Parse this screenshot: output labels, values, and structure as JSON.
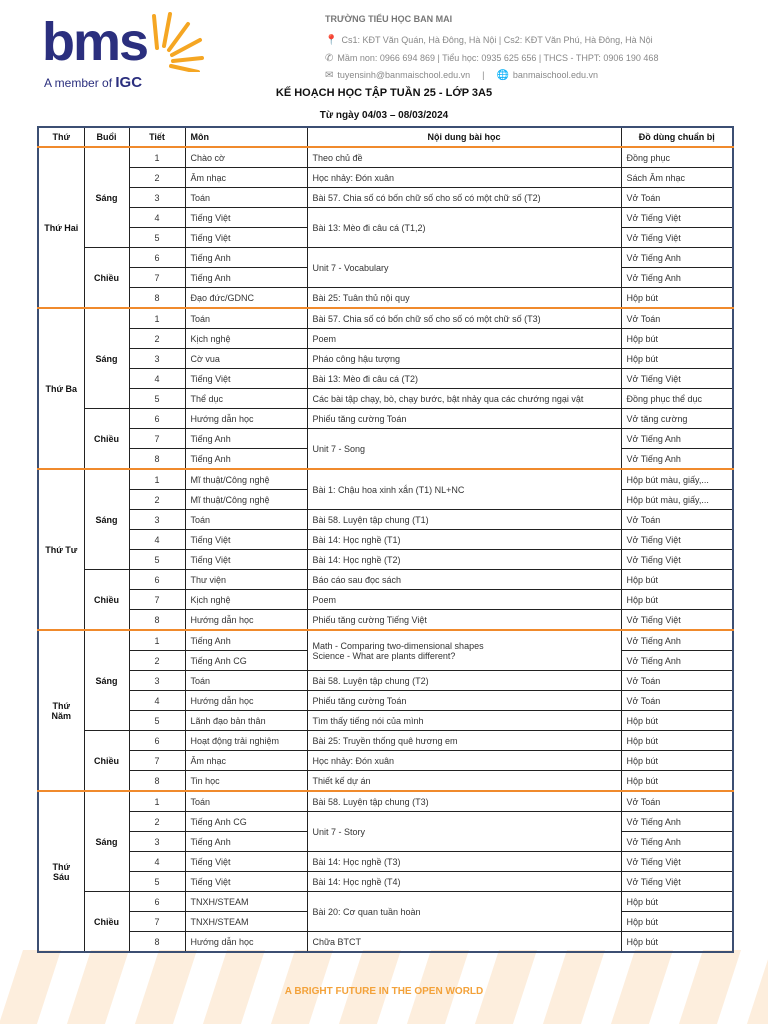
{
  "header": {
    "logo_text": "bms",
    "logo_member": "A member of",
    "logo_member_brand": "IGC",
    "school_name": "TRƯỜNG TIỂU HỌC BAN MAI",
    "address": "Cs1: KĐT Văn Quán, Hà Đông, Hà Nội   |   Cs2: KĐT Văn Phú, Hà Đông, Hà Nội",
    "phones": "Mầm non: 0966 694 869  |  Tiểu học: 0935 625 656  |  THCS - THPT: 0906 190 468",
    "email": "tuyensinh@banmaischool.edu.vn",
    "website": "banmaischool.edu.vn",
    "title": "KẾ HOẠCH HỌC TẬP TUẦN 25 - LỚP 3A5",
    "date_range": "Từ ngày 04/03  –  08/03/2024",
    "accent_color": "#f08a2c",
    "brand_color": "#2b2f7e"
  },
  "table": {
    "columns": [
      "Thứ",
      "Buổi",
      "Tiết",
      "Môn",
      "Nội dung bài học",
      "Đồ dùng chuẩn bị"
    ],
    "days": [
      {
        "name": "Thứ Hai",
        "sessions": [
          {
            "name": "Sáng",
            "rows": [
              {
                "tiet": "1",
                "mon": "Chào cờ",
                "noidung": "Theo chủ đề",
                "span": 1,
                "dodung": "Đồng phục"
              },
              {
                "tiet": "2",
                "mon": "Âm nhạc",
                "noidung": "Học nhảy: Đón xuân",
                "span": 1,
                "dodung": "Sách Âm nhạc"
              },
              {
                "tiet": "3",
                "mon": "Toán",
                "noidung": "Bài 57. Chia số có bốn chữ số cho số có một chữ số (T2)",
                "span": 1,
                "dodung": "Vở Toán"
              },
              {
                "tiet": "4",
                "mon": "Tiếng Việt",
                "noidung": "Bài 13: Mèo đi câu cá (T1,2)",
                "span": 2,
                "dodung": "Vở Tiếng Việt"
              },
              {
                "tiet": "5",
                "mon": "Tiếng Việt",
                "dodung": "Vở Tiếng Việt"
              }
            ]
          },
          {
            "name": "Chiều",
            "rows": [
              {
                "tiet": "6",
                "mon": "Tiếng Anh",
                "noidung": "Unit 7 - Vocabulary",
                "span": 2,
                "dodung": "Vở Tiếng Anh"
              },
              {
                "tiet": "7",
                "mon": "Tiếng Anh",
                "dodung": "Vở Tiếng Anh"
              },
              {
                "tiet": "8",
                "mon": "Đạo đức/GDNC",
                "noidung": "Bài 25: Tuân thủ nội quy",
                "span": 1,
                "dodung": "Hộp bút"
              }
            ]
          }
        ]
      },
      {
        "name": "Thứ Ba",
        "sessions": [
          {
            "name": "Sáng",
            "rows": [
              {
                "tiet": "1",
                "mon": "Toán",
                "noidung": "Bài 57. Chia số có bốn chữ số cho số có một chữ số (T3)",
                "span": 1,
                "dodung": "Vở Toán"
              },
              {
                "tiet": "2",
                "mon": "Kịch nghệ",
                "noidung": "Poem",
                "span": 1,
                "dodung": "Hộp bút"
              },
              {
                "tiet": "3",
                "mon": "Cờ vua",
                "noidung": "Pháo công hậu tượng",
                "span": 1,
                "dodung": "Hộp bút"
              },
              {
                "tiet": "4",
                "mon": "Tiếng Việt",
                "noidung": "Bài 13: Mèo đi câu cá (T2)",
                "span": 1,
                "dodung": "Vở Tiếng Việt"
              },
              {
                "tiet": "5",
                "mon": "Thể dục",
                "noidung": "Các bài tập chạy, bò, chạy bước, bật nhảy qua các chướng ngại vật",
                "span": 1,
                "dodung": "Đồng phục thể dục"
              }
            ]
          },
          {
            "name": "Chiều",
            "rows": [
              {
                "tiet": "6",
                "mon": "Hướng dẫn học",
                "noidung": "Phiếu tăng cường Toán",
                "span": 1,
                "dodung": "Vở tăng cường"
              },
              {
                "tiet": "7",
                "mon": "Tiếng Anh",
                "noidung": "Unit 7 - Song",
                "span": 2,
                "dodung": "Vở Tiếng Anh"
              },
              {
                "tiet": "8",
                "mon": "Tiếng Anh",
                "dodung": "Vở Tiếng Anh"
              }
            ]
          }
        ]
      },
      {
        "name": "Thứ Tư",
        "sessions": [
          {
            "name": "Sáng",
            "rows": [
              {
                "tiet": "1",
                "mon": "Mĩ thuật/Công nghệ",
                "noidung": "Bài 1: Chậu hoa xinh xắn (T1) NL+NC",
                "span": 2,
                "dodung": "Hộp bút màu, giấy,..."
              },
              {
                "tiet": "2",
                "mon": "Mĩ thuật/Công nghệ",
                "dodung": "Hộp bút màu, giấy,..."
              },
              {
                "tiet": "3",
                "mon": "Toán",
                "noidung": "Bài 58. Luyện tập chung (T1)",
                "span": 1,
                "dodung": "Vở Toán"
              },
              {
                "tiet": "4",
                "mon": "Tiếng Việt",
                "noidung": "Bài 14: Học nghề (T1)",
                "span": 1,
                "dodung": "Vở Tiếng Việt"
              },
              {
                "tiet": "5",
                "mon": "Tiếng Việt",
                "noidung": "Bài 14: Học nghề (T2)",
                "span": 1,
                "dodung": "Vở Tiếng Việt"
              }
            ]
          },
          {
            "name": "Chiều",
            "rows": [
              {
                "tiet": "6",
                "mon": "Thư viện",
                "noidung": "Báo cáo sau đọc sách",
                "span": 1,
                "dodung": "Hộp bút"
              },
              {
                "tiet": "7",
                "mon": "Kịch nghệ",
                "noidung": "Poem",
                "span": 1,
                "dodung": "Hộp bút"
              },
              {
                "tiet": "8",
                "mon": "Hướng dẫn học",
                "noidung": "Phiếu tăng cường Tiếng Việt",
                "span": 1,
                "dodung": "Vở Tiếng Việt"
              }
            ]
          }
        ]
      },
      {
        "name": "Thứ Năm",
        "sessions": [
          {
            "name": "Sáng",
            "rows": [
              {
                "tiet": "1",
                "mon": "Tiếng Anh",
                "noidung": "Math - Comparing two-dimensional shapes\nScience - What are plants different?",
                "span": 2,
                "dodung": "Vở Tiếng Anh"
              },
              {
                "tiet": "2",
                "mon": "Tiếng Anh CG",
                "dodung": "Vở Tiếng Anh"
              },
              {
                "tiet": "3",
                "mon": "Toán",
                "noidung": "Bài 58. Luyện tập chung (T2)",
                "span": 1,
                "dodung": "Vở Toán"
              },
              {
                "tiet": "4",
                "mon": "Hướng dẫn học",
                "noidung": "Phiếu tăng cường Toán",
                "span": 1,
                "dodung": "Vở Toán"
              },
              {
                "tiet": "5",
                "mon": "Lãnh đạo bản thân",
                "noidung": "Tìm thấy tiếng nói của mình",
                "span": 1,
                "dodung": "Hộp bút"
              }
            ]
          },
          {
            "name": "Chiều",
            "rows": [
              {
                "tiet": "6",
                "mon": "Hoạt động trải nghiệm",
                "noidung": "Bài 25: Truyền thống quê hương em",
                "span": 1,
                "dodung": "Hộp bút"
              },
              {
                "tiet": "7",
                "mon": "Âm nhạc",
                "noidung": "Học nhảy: Đón xuân",
                "span": 1,
                "dodung": "Hộp bút"
              },
              {
                "tiet": "8",
                "mon": "Tin học",
                "noidung": "Thiết kế dự án",
                "span": 1,
                "dodung": "Hộp bút"
              }
            ]
          }
        ]
      },
      {
        "name": "Thứ Sáu",
        "sessions": [
          {
            "name": "Sáng",
            "rows": [
              {
                "tiet": "1",
                "mon": "Toán",
                "noidung": "Bài 58. Luyện tập chung (T3)",
                "span": 1,
                "dodung": "Vở Toán"
              },
              {
                "tiet": "2",
                "mon": "Tiếng Anh CG",
                "noidung": "Unit 7 - Story",
                "span": 2,
                "dodung": "Vở Tiếng Anh"
              },
              {
                "tiet": "3",
                "mon": "Tiếng Anh",
                "dodung": "Vở Tiếng Anh"
              },
              {
                "tiet": "4",
                "mon": "Tiếng Việt",
                "noidung": "Bài 14: Học nghề (T3)",
                "span": 1,
                "dodung": "Vở Tiếng Việt"
              },
              {
                "tiet": "5",
                "mon": "Tiếng Việt",
                "noidung": "Bài 14: Học nghề (T4)",
                "span": 1,
                "dodung": "Vở Tiếng Việt"
              }
            ]
          },
          {
            "name": "Chiều",
            "rows": [
              {
                "tiet": "6",
                "mon": "TNXH/STEAM",
                "noidung": "Bài 20: Cơ quan tuần hoàn",
                "span": 2,
                "dodung": "Hộp bút"
              },
              {
                "tiet": "7",
                "mon": "TNXH/STEAM",
                "dodung": "Hộp bút"
              },
              {
                "tiet": "8",
                "mon": "Hướng dẫn học",
                "noidung": "Chữa BTCT",
                "span": 1,
                "dodung": "Hộp bút"
              }
            ]
          }
        ]
      }
    ]
  },
  "footer": {
    "slogan": "A BRIGHT FUTURE IN THE OPEN WORLD"
  }
}
